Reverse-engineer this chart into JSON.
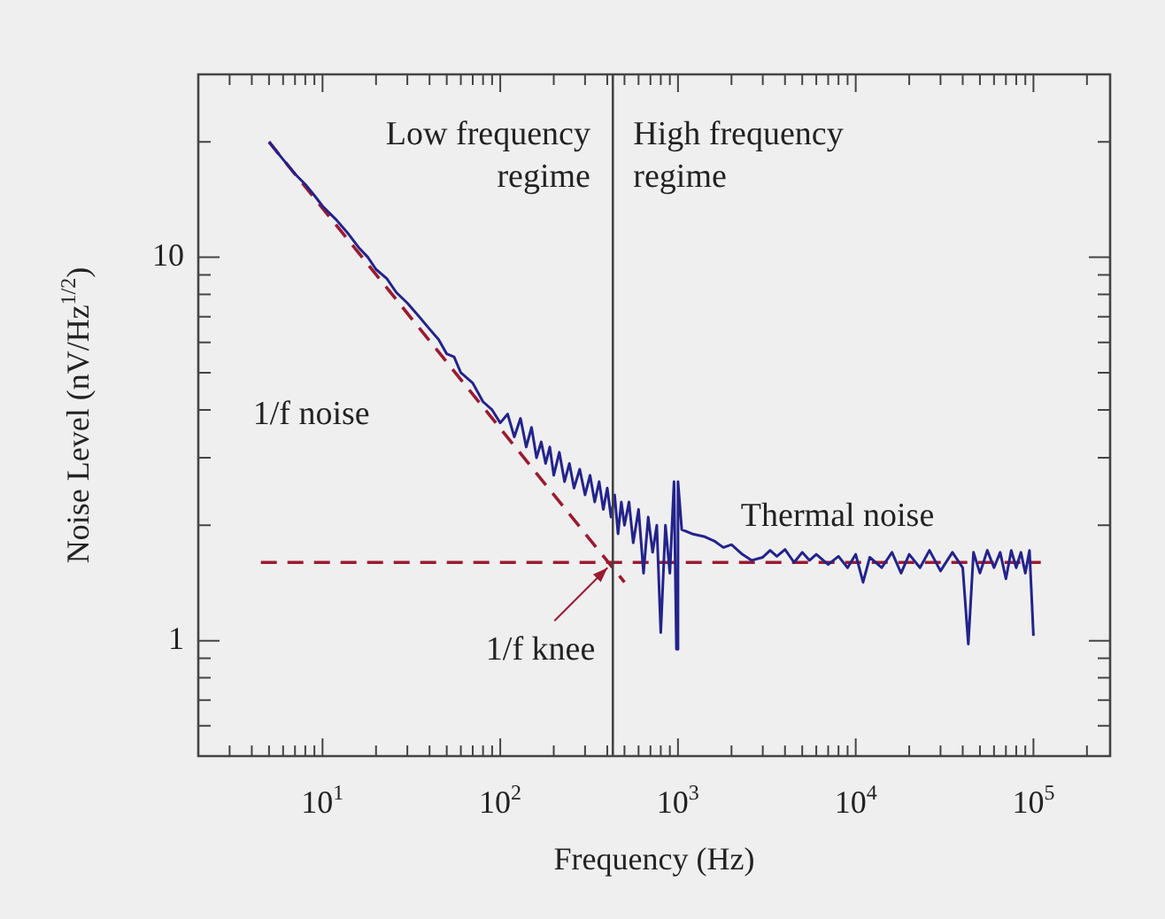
{
  "chart_data": {
    "type": "line",
    "xlabel": "Frequency (Hz)",
    "ylabel": "Noise Level (nV/Hz$^{1/2}$)",
    "log": "xy",
    "legend": false,
    "marker": "none",
    "xlim": [
      2,
      270000
    ],
    "ylim": [
      0.5,
      30
    ],
    "xticks": [
      {
        "value": 2,
        "label": null
      },
      {
        "value": 3,
        "label": null
      },
      {
        "value": 4,
        "label": null
      },
      {
        "value": 5,
        "label": null
      },
      {
        "value": 6,
        "label": null
      },
      {
        "value": 7,
        "label": null
      },
      {
        "value": 8,
        "label": null
      },
      {
        "value": 9,
        "label": null
      },
      {
        "value": 10,
        "label": "10$^{1}$"
      },
      {
        "value": 20,
        "label": null
      },
      {
        "value": 30,
        "label": null
      },
      {
        "value": 40,
        "label": null
      },
      {
        "value": 50,
        "label": null
      },
      {
        "value": 60,
        "label": null
      },
      {
        "value": 70,
        "label": null
      },
      {
        "value": 80,
        "label": null
      },
      {
        "value": 90,
        "label": null
      },
      {
        "value": 100,
        "label": "10$^{2}$"
      },
      {
        "value": 200,
        "label": null
      },
      {
        "value": 300,
        "label": null
      },
      {
        "value": 400,
        "label": null
      },
      {
        "value": 500,
        "label": null
      },
      {
        "value": 600,
        "label": null
      },
      {
        "value": 700,
        "label": null
      },
      {
        "value": 800,
        "label": null
      },
      {
        "value": 900,
        "label": null
      },
      {
        "value": 1000,
        "label": "10$^{3}$"
      },
      {
        "value": 2000,
        "label": null
      },
      {
        "value": 3000,
        "label": null
      },
      {
        "value": 4000,
        "label": null
      },
      {
        "value": 5000,
        "label": null
      },
      {
        "value": 6000,
        "label": null
      },
      {
        "value": 7000,
        "label": null
      },
      {
        "value": 8000,
        "label": null
      },
      {
        "value": 9000,
        "label": null
      },
      {
        "value": 10000,
        "label": "10$^{4}$"
      },
      {
        "value": 20000,
        "label": null
      },
      {
        "value": 30000,
        "label": null
      },
      {
        "value": 40000,
        "label": null
      },
      {
        "value": 50000,
        "label": null
      },
      {
        "value": 60000,
        "label": null
      },
      {
        "value": 70000,
        "label": null
      },
      {
        "value": 80000,
        "label": null
      },
      {
        "value": 90000,
        "label": null
      },
      {
        "value": 100000,
        "label": "10$^{5}$"
      },
      {
        "value": 200000,
        "label": null
      }
    ],
    "yticks": [
      {
        "value": 0.6,
        "label": null
      },
      {
        "value": 0.7,
        "label": null
      },
      {
        "value": 0.8,
        "label": null
      },
      {
        "value": 0.9,
        "label": null
      },
      1,
      {
        "value": 2,
        "label": null
      },
      {
        "value": 3,
        "label": null
      },
      {
        "value": 4,
        "label": null
      },
      {
        "value": 5,
        "label": null
      },
      {
        "value": 6,
        "label": null
      },
      {
        "value": 7,
        "label": null
      },
      {
        "value": 8,
        "label": null
      },
      {
        "value": 9,
        "label": null
      },
      10,
      {
        "value": 20,
        "label": null
      }
    ],
    "ref_lines": [
      {
        "axis": "x",
        "value": 430,
        "color": "#444444",
        "line_style": "solid"
      }
    ],
    "annotations": [
      "Low frequency\nregime",
      "High frequency\nregime",
      "1/f noise",
      "Thermal noise",
      {
        "text": "1/f knee",
        "x": 430,
        "y": 1.6
      }
    ],
    "series": [
      {
        "type": "line",
        "color": "#23238c",
        "line_style": "solid",
        "x": [
          5,
          6,
          7,
          8,
          9,
          10,
          12,
          14,
          16,
          18,
          20,
          23,
          26,
          30,
          35,
          40,
          45,
          50,
          55,
          60,
          70,
          80,
          90,
          100,
          110,
          120,
          130,
          140,
          150,
          160,
          170,
          180,
          190,
          200,
          215,
          230,
          245,
          260,
          280,
          300,
          320,
          340,
          360,
          380,
          400,
          420,
          440,
          460,
          480,
          500,
          530,
          560,
          600,
          640,
          680,
          720,
          760,
          800,
          850,
          900,
          950,
          980,
          1000,
          1050,
          1200,
          1400,
          1600,
          1800,
          2000,
          2300,
          2600,
          3000,
          3300,
          3600,
          4000,
          4500,
          5000,
          5500,
          6000,
          7000,
          8000,
          9000,
          10000,
          11000,
          12000,
          14000,
          16000,
          18000,
          20000,
          23000,
          26000,
          30000,
          35000,
          40000,
          43000,
          46000,
          50000,
          55000,
          60000,
          65000,
          70000,
          75000,
          80000,
          85000,
          90000,
          95000,
          100000
        ],
        "values": [
          20,
          18,
          16.5,
          15.5,
          14.5,
          13.6,
          12.5,
          11.5,
          10.6,
          10,
          9.3,
          8.8,
          8.1,
          7.6,
          7,
          6.5,
          6.1,
          5.6,
          5.5,
          5,
          4.7,
          4.2,
          4,
          3.7,
          3.9,
          3.4,
          3.8,
          3.2,
          3.6,
          3,
          3.3,
          2.9,
          3.2,
          2.7,
          3.1,
          2.6,
          2.9,
          2.5,
          2.8,
          2.4,
          2.7,
          2.3,
          2.6,
          2.2,
          2.5,
          2.1,
          2.4,
          1.9,
          2.3,
          2,
          2.3,
          1.8,
          2.2,
          1.5,
          2.1,
          1.7,
          2,
          1.05,
          2,
          1.5,
          2.6,
          0.95,
          2.6,
          1.95,
          1.9,
          1.87,
          1.82,
          1.75,
          1.78,
          1.68,
          1.62,
          1.65,
          1.72,
          1.66,
          1.73,
          1.6,
          1.7,
          1.62,
          1.68,
          1.58,
          1.66,
          1.55,
          1.68,
          1.42,
          1.65,
          1.55,
          1.7,
          1.5,
          1.68,
          1.55,
          1.72,
          1.52,
          1.7,
          1.55,
          0.98,
          1.7,
          1.5,
          1.72,
          1.55,
          1.7,
          1.45,
          1.72,
          1.55,
          1.7,
          1.5,
          1.72,
          1.03
        ]
      },
      {
        "type": "line",
        "color": "#9b1b30",
        "line_style": "dashed",
        "x": [
          5,
          500
        ],
        "values": [
          20,
          1.42
        ]
      },
      {
        "type": "line",
        "color": "#9b1b30",
        "line_style": "dashed",
        "x": [
          4.5,
          110000
        ],
        "values": [
          1.6,
          1.6
        ]
      }
    ]
  }
}
